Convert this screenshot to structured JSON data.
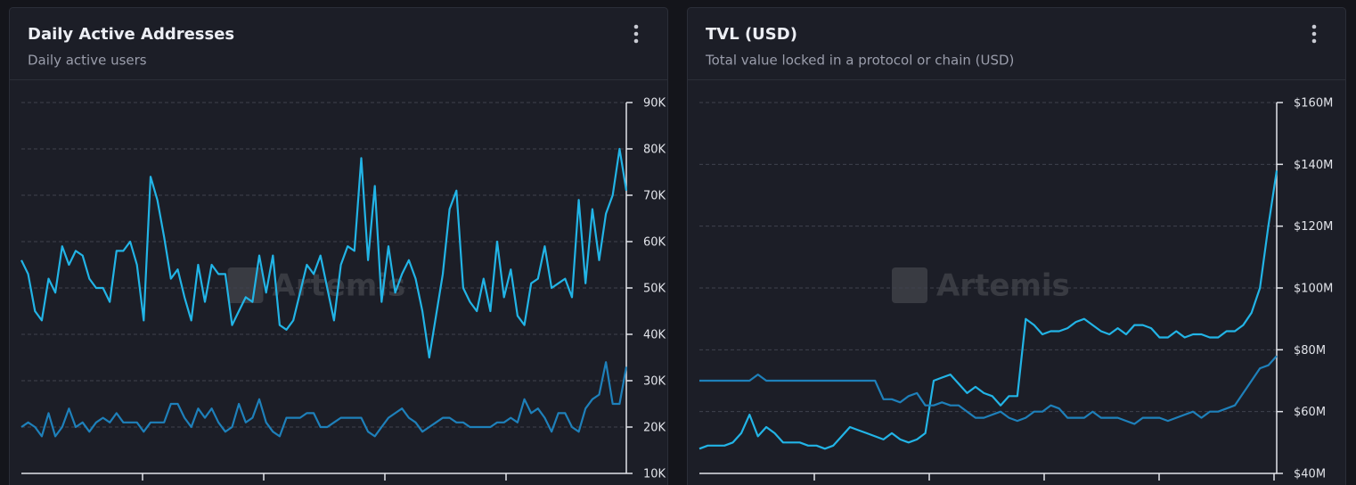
{
  "chart_data": [
    {
      "type": "line",
      "title": "Daily Active Addresses",
      "subtitle": "Daily active users",
      "watermark": "Artemis",
      "ylim": [
        10000,
        90000
      ],
      "yticks": [
        {
          "value": 10000,
          "label": "10K"
        },
        {
          "value": 20000,
          "label": "20K"
        },
        {
          "value": 30000,
          "label": "30K"
        },
        {
          "value": 40000,
          "label": "40K"
        },
        {
          "value": 50000,
          "label": "50K"
        },
        {
          "value": 60000,
          "label": "60K"
        },
        {
          "value": 70000,
          "label": "70K"
        },
        {
          "value": 80000,
          "label": "80K"
        },
        {
          "value": 90000,
          "label": "90K"
        }
      ],
      "grid": true,
      "series": [
        {
          "color": "#22b4e6",
          "values": [
            56000,
            53000,
            45000,
            43000,
            52000,
            49000,
            59000,
            55000,
            58000,
            57000,
            52000,
            50000,
            50000,
            47000,
            58000,
            58000,
            60000,
            55000,
            43000,
            74000,
            69000,
            61000,
            52000,
            54000,
            48000,
            43000,
            55000,
            47000,
            55000,
            53000,
            53000,
            42000,
            45000,
            48000,
            47000,
            57000,
            49000,
            57000,
            42000,
            41000,
            43000,
            49000,
            55000,
            53000,
            57000,
            50000,
            43000,
            55000,
            59000,
            58000,
            78000,
            56000,
            72000,
            47000,
            59000,
            49000,
            53000,
            56000,
            52000,
            45000,
            35000,
            44000,
            53000,
            67000,
            71000,
            50000,
            47000,
            45000,
            52000,
            45000,
            60000,
            48000,
            54000,
            44000,
            42000,
            51000,
            52000,
            59000,
            50000,
            51000,
            52000,
            48000,
            69000,
            51000,
            67000,
            56000,
            66000,
            70000,
            80000,
            71000
          ]
        },
        {
          "color": "#1e80ba",
          "values": [
            20000,
            21000,
            20000,
            18000,
            23000,
            18000,
            20000,
            24000,
            20000,
            21000,
            19000,
            21000,
            22000,
            21000,
            23000,
            21000,
            21000,
            21000,
            19000,
            21000,
            21000,
            21000,
            25000,
            25000,
            22000,
            20000,
            24000,
            22000,
            24000,
            21000,
            19000,
            20000,
            25000,
            21000,
            22000,
            26000,
            21000,
            19000,
            18000,
            22000,
            22000,
            22000,
            23000,
            23000,
            20000,
            20000,
            21000,
            22000,
            22000,
            22000,
            22000,
            19000,
            18000,
            20000,
            22000,
            23000,
            24000,
            22000,
            21000,
            19000,
            20000,
            21000,
            22000,
            22000,
            21000,
            21000,
            20000,
            20000,
            20000,
            20000,
            21000,
            21000,
            22000,
            21000,
            26000,
            23000,
            24000,
            22000,
            19000,
            23000,
            23000,
            20000,
            19000,
            24000,
            26000,
            27000,
            34000,
            25000,
            25000,
            33000
          ]
        }
      ]
    },
    {
      "type": "line",
      "title": "TVL (USD)",
      "subtitle": "Total value locked in a protocol or chain (USD)",
      "watermark": "Artemis",
      "ylim": [
        40000000,
        160000000
      ],
      "yticks": [
        {
          "value": 40000000,
          "label": "$40M"
        },
        {
          "value": 60000000,
          "label": "$60M"
        },
        {
          "value": 80000000,
          "label": "$80M"
        },
        {
          "value": 100000000,
          "label": "$100M"
        },
        {
          "value": 120000000,
          "label": "$120M"
        },
        {
          "value": 140000000,
          "label": "$140M"
        },
        {
          "value": 160000000,
          "label": "$160M"
        }
      ],
      "grid": true,
      "series": [
        {
          "color": "#22b4e6",
          "values": [
            48000000,
            49000000,
            49000000,
            49000000,
            50000000,
            53000000,
            59000000,
            52000000,
            55000000,
            53000000,
            50000000,
            50000000,
            50000000,
            49000000,
            49000000,
            48000000,
            49000000,
            52000000,
            55000000,
            54000000,
            53000000,
            52000000,
            51000000,
            53000000,
            51000000,
            50000000,
            51000000,
            53000000,
            70000000,
            71000000,
            72000000,
            69000000,
            66000000,
            68000000,
            66000000,
            65000000,
            62000000,
            65000000,
            65000000,
            90000000,
            88000000,
            85000000,
            86000000,
            86000000,
            87000000,
            89000000,
            90000000,
            88000000,
            86000000,
            85000000,
            87000000,
            85000000,
            88000000,
            88000000,
            87000000,
            84000000,
            84000000,
            86000000,
            84000000,
            85000000,
            85000000,
            84000000,
            84000000,
            86000000,
            86000000,
            88000000,
            92000000,
            100000000,
            120000000,
            138000000
          ]
        },
        {
          "color": "#1e80ba",
          "values": [
            70000000,
            70000000,
            70000000,
            70000000,
            70000000,
            70000000,
            70000000,
            72000000,
            70000000,
            70000000,
            70000000,
            70000000,
            70000000,
            70000000,
            70000000,
            70000000,
            70000000,
            70000000,
            70000000,
            70000000,
            70000000,
            70000000,
            64000000,
            64000000,
            63000000,
            65000000,
            66000000,
            62000000,
            62000000,
            63000000,
            62000000,
            62000000,
            60000000,
            58000000,
            58000000,
            59000000,
            60000000,
            58000000,
            57000000,
            58000000,
            60000000,
            60000000,
            62000000,
            61000000,
            58000000,
            58000000,
            58000000,
            60000000,
            58000000,
            58000000,
            58000000,
            57000000,
            56000000,
            58000000,
            58000000,
            58000000,
            57000000,
            58000000,
            59000000,
            60000000,
            58000000,
            60000000,
            60000000,
            61000000,
            62000000,
            66000000,
            70000000,
            74000000,
            75000000,
            78000000
          ]
        }
      ]
    }
  ]
}
